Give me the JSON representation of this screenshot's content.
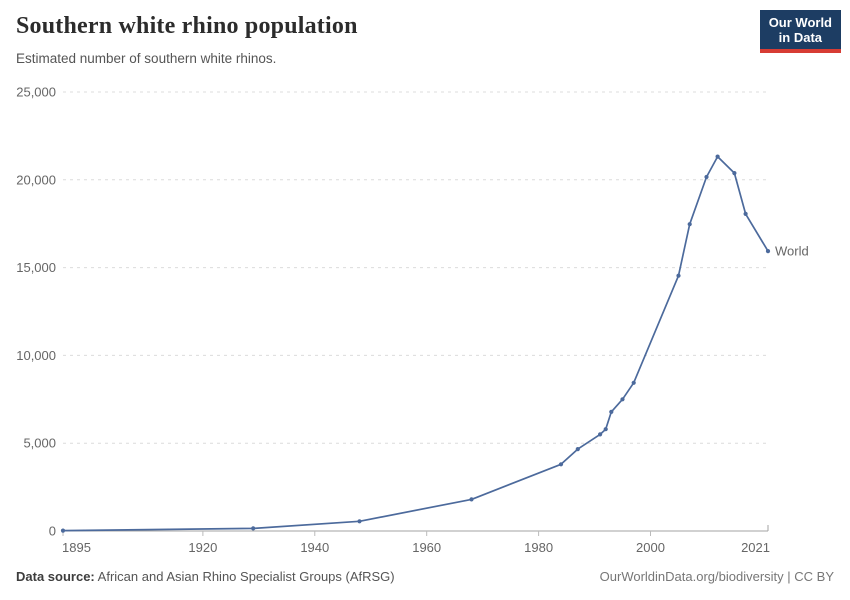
{
  "header": {
    "title": "Southern white rhino population",
    "subtitle": "Estimated number of southern white rhinos.",
    "logo": {
      "line1": "Our World",
      "line2": "in Data",
      "bg_color": "#1d3d63",
      "accent_color": "#d73c34"
    }
  },
  "chart_data": {
    "type": "line",
    "title": "Southern white rhino population",
    "subtitle": "Estimated number of southern white rhinos.",
    "xlim": [
      1895,
      2021
    ],
    "ylim": [
      0,
      25000
    ],
    "grid": "horizontal-dashed",
    "legend_position": "end-of-line-label",
    "x_ticks": [
      {
        "value": 1895,
        "label": "1895"
      },
      {
        "value": 1920,
        "label": "1920"
      },
      {
        "value": 1940,
        "label": "1940"
      },
      {
        "value": 1960,
        "label": "1960"
      },
      {
        "value": 1980,
        "label": "1980"
      },
      {
        "value": 2000,
        "label": "2000"
      },
      {
        "value": 2021,
        "label": "2021"
      }
    ],
    "y_ticks": [
      {
        "value": 0,
        "label": "0"
      },
      {
        "value": 5000,
        "label": "5,000"
      },
      {
        "value": 10000,
        "label": "10,000"
      },
      {
        "value": 15000,
        "label": "15,000"
      },
      {
        "value": 20000,
        "label": "20,000"
      },
      {
        "value": 25000,
        "label": "25,000"
      }
    ],
    "series": [
      {
        "name": "World",
        "color": "#4c6a9c",
        "points": [
          {
            "year": 1895,
            "value": 20
          },
          {
            "year": 1929,
            "value": 150
          },
          {
            "year": 1948,
            "value": 550
          },
          {
            "year": 1968,
            "value": 1800
          },
          {
            "year": 1984,
            "value": 3800
          },
          {
            "year": 1987,
            "value": 4665
          },
          {
            "year": 1991,
            "value": 5500
          },
          {
            "year": 1992,
            "value": 5800
          },
          {
            "year": 1993,
            "value": 6780
          },
          {
            "year": 1995,
            "value": 7500
          },
          {
            "year": 1997,
            "value": 8440
          },
          {
            "year": 2005,
            "value": 14540
          },
          {
            "year": 2007,
            "value": 17470
          },
          {
            "year": 2010,
            "value": 20160
          },
          {
            "year": 2012,
            "value": 21320
          },
          {
            "year": 2015,
            "value": 20380
          },
          {
            "year": 2017,
            "value": 18060
          },
          {
            "year": 2021,
            "value": 15940
          }
        ]
      }
    ]
  },
  "footer": {
    "source_label": "Data source:",
    "source_text": "African and Asian Rhino Specialist Groups (AfRSG)",
    "attribution": "OurWorldinData.org/biodiversity | CC BY"
  }
}
